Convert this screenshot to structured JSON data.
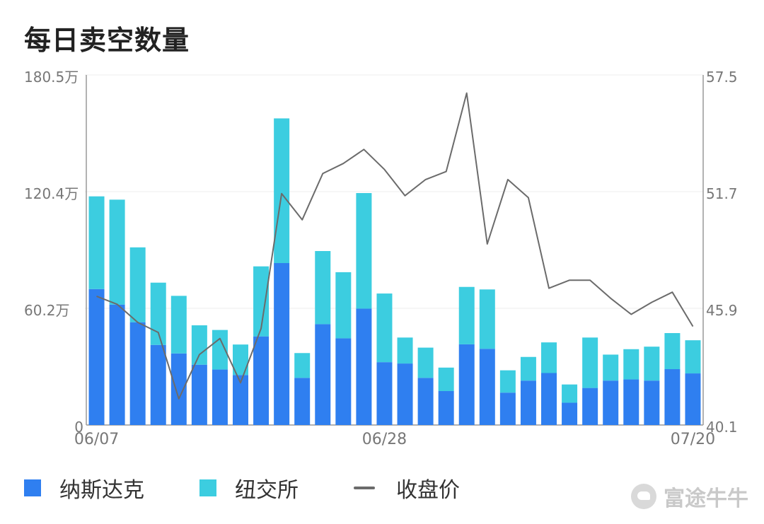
{
  "title": "每日卖空数量",
  "chart_data": {
    "type": "bar",
    "stacked": true,
    "title": "每日卖空数量",
    "x_tick_labels": [
      "06/07",
      "06/28",
      "07/20"
    ],
    "x_tick_indices": [
      0,
      14,
      29
    ],
    "y_left_ticks": [
      "0",
      "60.2万",
      "120.4万",
      "180.5万"
    ],
    "y_left_range": [
      0,
      180.5
    ],
    "y_left_unit": "万",
    "y_right_ticks": [
      "40.1",
      "45.9",
      "51.7",
      "57.5"
    ],
    "y_right_range": [
      40.1,
      57.5
    ],
    "series": [
      {
        "name": "纳斯达克",
        "type": "bar",
        "axis": "left",
        "color": "#2f7ff0",
        "values": [
          70.1,
          62.1,
          53.0,
          41.3,
          36.9,
          31.1,
          28.6,
          25.8,
          45.7,
          83.5,
          24.3,
          52.0,
          44.7,
          60.0,
          32.4,
          31.7,
          24.3,
          17.5,
          41.6,
          39.3,
          16.7,
          22.9,
          26.8,
          11.5,
          19.1,
          22.9,
          23.5,
          22.9,
          28.8,
          26.6
        ]
      },
      {
        "name": "纽交所",
        "type": "bar",
        "axis": "left",
        "color": "#3ccde0",
        "values": [
          47.8,
          54.1,
          38.6,
          32.1,
          29.7,
          20.3,
          20.4,
          15.7,
          36.1,
          74.6,
          12.8,
          37.7,
          34.1,
          59.6,
          35.4,
          13.4,
          15.6,
          12.1,
          29.6,
          30.6,
          11.5,
          12.2,
          15.8,
          9.4,
          26.0,
          13.4,
          15.6,
          17.5,
          18.6,
          17.1
        ]
      },
      {
        "name": "收盘价",
        "type": "line",
        "axis": "right",
        "color": "#6b6b6b",
        "values": [
          46.5,
          46.1,
          45.2,
          44.7,
          41.4,
          43.6,
          44.4,
          42.2,
          44.9,
          51.6,
          50.3,
          52.6,
          53.1,
          53.8,
          52.8,
          51.5,
          52.3,
          52.7,
          56.6,
          49.1,
          52.3,
          51.4,
          46.9,
          47.3,
          47.3,
          46.4,
          45.6,
          46.2,
          46.7,
          45.0
        ]
      }
    ],
    "grid": true,
    "legend_position": "bottom-left"
  },
  "legend": [
    {
      "label": "纳斯达克",
      "color": "#2f7ff0",
      "kind": "bar"
    },
    {
      "label": "纽交所",
      "color": "#3ccde0",
      "kind": "bar"
    },
    {
      "label": "收盘价",
      "color": "#6b6b6b",
      "kind": "line"
    }
  ],
  "watermark": "富途牛牛"
}
